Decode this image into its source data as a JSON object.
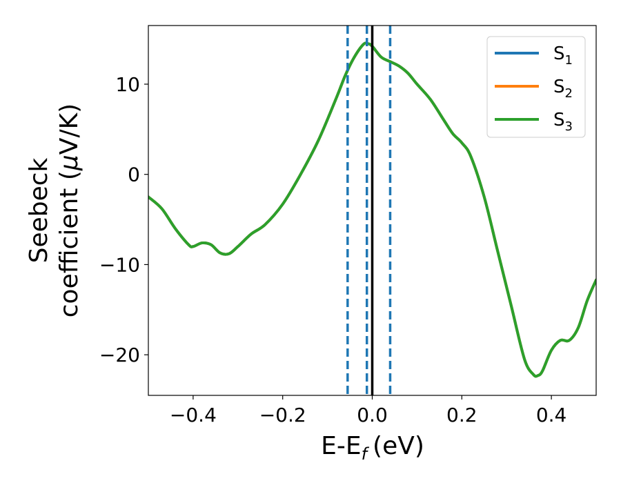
{
  "chart_data": {
    "type": "line",
    "xlabel": "E-E",
    "xlabel_sub": "f",
    "xlabel_unit": "(eV)",
    "ylabel_line1": "Seebeck",
    "ylabel_line2_prefix": "coefficient  (",
    "ylabel_mu": "μ",
    "ylabel_line2_suffix": "V/K)",
    "xlim": [
      -0.5,
      0.5
    ],
    "ylim": [
      -24.5,
      16.5
    ],
    "xticks": [
      -0.4,
      -0.2,
      0.0,
      0.2,
      0.4
    ],
    "xtick_labels": [
      "−0.4",
      "−0.2",
      "0.0",
      "0.2",
      "0.4"
    ],
    "yticks": [
      -20,
      -10,
      0,
      10
    ],
    "ytick_labels": [
      "−20",
      "−10",
      "0",
      "10"
    ],
    "vlines_dashed": [
      -0.055,
      -0.012,
      0.04
    ],
    "vline_dashed_color": "#1f77b4",
    "vline_solid": 0.0,
    "vline_solid_color": "#000000",
    "legend_position": "top-right",
    "series": [
      {
        "name_base": "S",
        "name_sub": "1",
        "color": "#1f77b4"
      },
      {
        "name_base": "S",
        "name_sub": "2",
        "color": "#ff7f0e"
      },
      {
        "name_base": "S",
        "name_sub": "3",
        "color": "#2ca02c"
      }
    ],
    "x": [
      -0.5,
      -0.47,
      -0.44,
      -0.41,
      -0.4,
      -0.38,
      -0.36,
      -0.34,
      -0.32,
      -0.3,
      -0.27,
      -0.24,
      -0.2,
      -0.16,
      -0.12,
      -0.08,
      -0.06,
      -0.04,
      -0.02,
      -0.01,
      0.0,
      0.02,
      0.04,
      0.06,
      0.08,
      0.1,
      0.13,
      0.16,
      0.18,
      0.2,
      0.22,
      0.25,
      0.28,
      0.31,
      0.34,
      0.36,
      0.37,
      0.38,
      0.4,
      0.42,
      0.44,
      0.46,
      0.48,
      0.5
    ],
    "y": [
      -2.5,
      -3.8,
      -6.0,
      -7.8,
      -8.0,
      -7.6,
      -7.8,
      -8.7,
      -8.8,
      -8.0,
      -6.6,
      -5.6,
      -3.3,
      0.0,
      3.8,
      8.5,
      11.0,
      13.0,
      14.4,
      14.5,
      14.2,
      13.0,
      12.5,
      12.0,
      11.2,
      10.0,
      8.3,
      6.0,
      4.5,
      3.5,
      2.0,
      -2.5,
      -8.5,
      -14.5,
      -20.5,
      -22.2,
      -22.3,
      -21.8,
      -19.5,
      -18.4,
      -18.4,
      -17.0,
      -14.0,
      -11.7
    ]
  }
}
